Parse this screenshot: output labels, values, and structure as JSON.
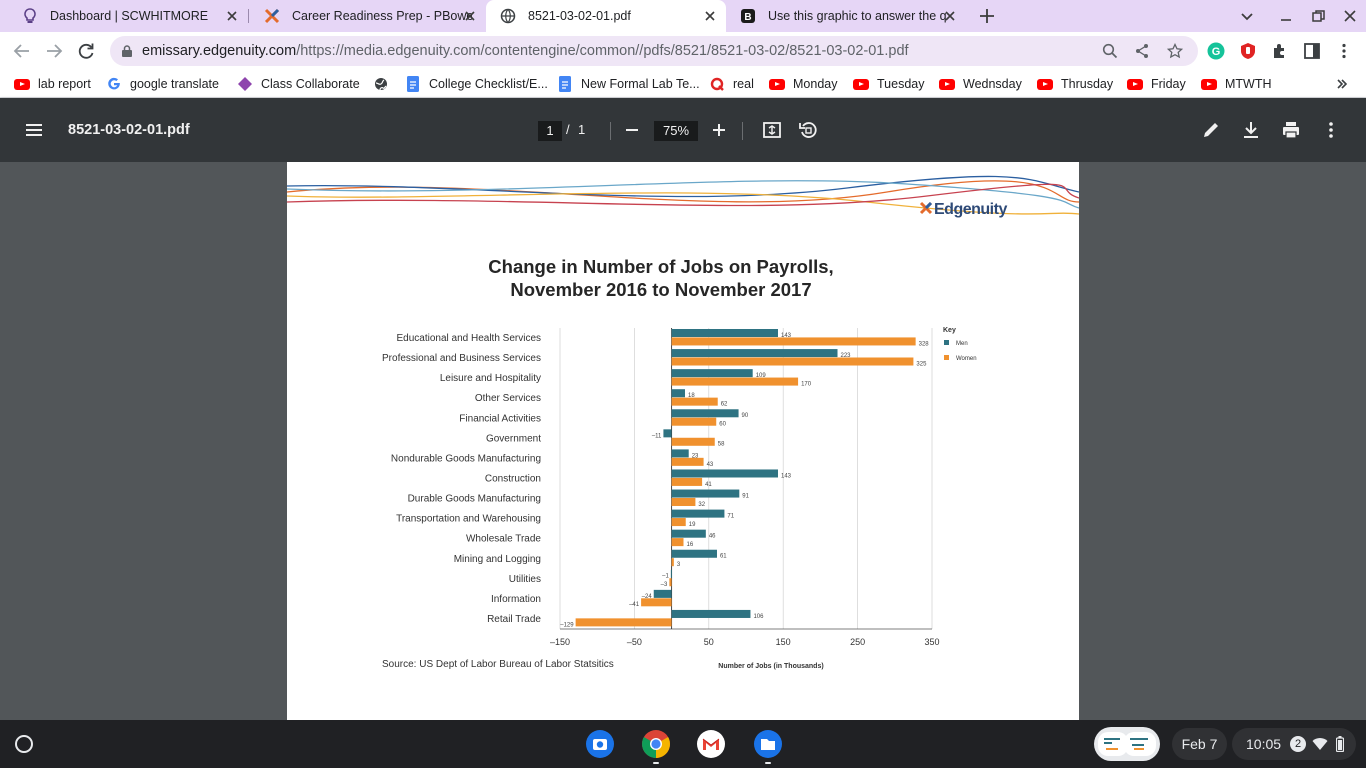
{
  "tabs": [
    {
      "title": "Dashboard | SCWHITMORE",
      "icon": "bulb-icon"
    },
    {
      "title": "Career Readiness Prep - PBowers",
      "icon": "edgenuity-icon"
    },
    {
      "title": "8521-03-02-01.pdf",
      "icon": "globe-icon",
      "active": true
    },
    {
      "title": "Use this graphic to answer the q",
      "icon": "brainly-icon"
    }
  ],
  "address": {
    "host": "emissary.edgenuity.com",
    "path": "/https://media.edgenuity.com/contentengine/common//pdfs/8521/8521-03-02/8521-03-02-01.pdf"
  },
  "bookmarks": [
    {
      "label": "lab report",
      "icon": "youtube-icon"
    },
    {
      "label": "google translate",
      "icon": "google-icon"
    },
    {
      "label": "Class Collaborate",
      "icon": "collaborate-icon"
    },
    {
      "label": "",
      "icon": "globe-icon"
    },
    {
      "label": "College Checklist/E...",
      "icon": "docs-icon"
    },
    {
      "label": "New Formal Lab Te...",
      "icon": "docs-icon"
    },
    {
      "label": "real",
      "icon": "quizlet-icon"
    },
    {
      "label": "Monday",
      "icon": "youtube-icon"
    },
    {
      "label": "Tuesday",
      "icon": "youtube-icon"
    },
    {
      "label": "Wednsday",
      "icon": "youtube-icon"
    },
    {
      "label": "Thrusday",
      "icon": "youtube-icon"
    },
    {
      "label": "Friday",
      "icon": "youtube-icon"
    },
    {
      "label": "MTWTH",
      "icon": "youtube-icon"
    }
  ],
  "pdf": {
    "filename": "8521-03-02-01.pdf",
    "page_current": "1",
    "page_sep": "/",
    "page_total": "1",
    "zoom": "75%"
  },
  "document": {
    "logo_text": "Edgenuity",
    "source": "Source: US Dept of Labor Bureau of Labor Statsitics"
  },
  "chart_data": {
    "type": "bar",
    "orientation": "horizontal",
    "title_line1": "Change in Number of Jobs on Payrolls,",
    "title_line2": "November 2016 to November 2017",
    "xlabel": "Number of Jobs (in Thousands)",
    "ylabel": "",
    "xlim": [
      -150,
      350
    ],
    "xticks": [
      "–150",
      "–50",
      "50",
      "150",
      "250",
      "350"
    ],
    "grid": true,
    "legend_title": "Key",
    "legend_position": "top-right",
    "categories": [
      "Educational and Health Services",
      "Professional and Business Services",
      "Leisure and Hospitality",
      "Other Services",
      "Financial Activities",
      "Government",
      "Nondurable Goods Manufacturing",
      "Construction",
      "Durable Goods Manufacturing",
      "Transportation and Warehousing",
      "Wholesale Trade",
      "Mining and Logging",
      "Utilities",
      "Information",
      "Retail Trade"
    ],
    "series": [
      {
        "name": "Men",
        "color": "#2e7382",
        "values": [
          143,
          223,
          109,
          18,
          90,
          -11,
          23,
          143,
          91,
          71,
          46,
          61,
          -1,
          -24,
          106
        ],
        "labels": [
          "143",
          "223",
          "109",
          "18",
          "90",
          "–11",
          "23",
          "143",
          "91",
          "71",
          "46",
          "61",
          "–1",
          "–24",
          "106"
        ]
      },
      {
        "name": "Women",
        "color": "#f0912e",
        "values": [
          328,
          325,
          170,
          62,
          60,
          58,
          43,
          41,
          32,
          19,
          16,
          3,
          -3,
          -41,
          -129
        ],
        "labels": [
          "328",
          "325",
          "170",
          "62",
          "60",
          "58",
          "43",
          "41",
          "32",
          "19",
          "16",
          "3",
          "–3",
          "–41",
          "–129"
        ]
      }
    ]
  },
  "shelf": {
    "date": "Feb 7",
    "time": "10:05",
    "notifications": "2"
  }
}
